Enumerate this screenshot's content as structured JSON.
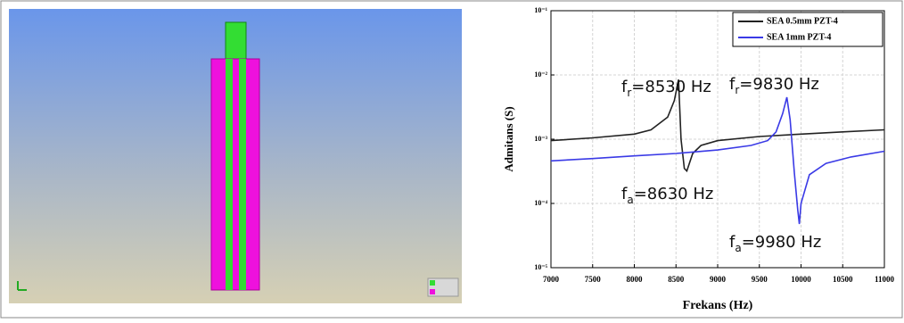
{
  "chart_data": {
    "type": "line",
    "log_y": true,
    "grid": true,
    "legend": "upper right",
    "xlabel": "Frekans (Hz)",
    "ylabel": "Admitans (S)",
    "xlim": [
      7000,
      11000
    ],
    "xticks": [
      7000,
      7500,
      8000,
      8500,
      9000,
      9500,
      10000,
      10500,
      11000
    ],
    "ylim": [
      1e-05,
      0.1
    ],
    "yticks": [
      {
        "value": 1e-05,
        "label": "10⁻⁵"
      },
      {
        "value": 0.0001,
        "label": "10⁻⁴"
      },
      {
        "value": 0.001,
        "label": "10⁻³"
      },
      {
        "value": 0.01,
        "label": "10⁻²"
      },
      {
        "value": 0.1,
        "label": "10⁻¹"
      }
    ],
    "series": [
      {
        "name": "SEA 0.5mm PZT-4",
        "color": "#222222",
        "x": [
          7000,
          7500,
          8000,
          8200,
          8400,
          8480,
          8530,
          8560,
          8600,
          8630,
          8700,
          8800,
          9000,
          9500,
          10000,
          10500,
          11000
        ],
        "values": [
          0.00095,
          0.00105,
          0.0012,
          0.0014,
          0.0022,
          0.004,
          0.0085,
          0.001,
          0.00035,
          0.00032,
          0.0006,
          0.0008,
          0.00095,
          0.0011,
          0.0012,
          0.0013,
          0.0014
        ]
      },
      {
        "name": "SEA 1mm PZT-4",
        "color": "#3a3ae6",
        "x": [
          7000,
          7500,
          8000,
          8500,
          9000,
          9400,
          9600,
          9700,
          9780,
          9830,
          9870,
          9920,
          9960,
          9980,
          10000,
          10100,
          10300,
          10600,
          11000
        ],
        "values": [
          0.00046,
          0.0005,
          0.00055,
          0.0006,
          0.00068,
          0.0008,
          0.00095,
          0.0013,
          0.0025,
          0.0045,
          0.002,
          0.0003,
          8e-05,
          4.8e-05,
          0.0001,
          0.00028,
          0.00042,
          0.00053,
          0.00065
        ]
      }
    ],
    "annotations": [
      {
        "main": "f",
        "sub": "r",
        "tail": "=8530 Hz"
      },
      {
        "main": "f",
        "sub": "a",
        "tail": "=8630 Hz"
      },
      {
        "main": "f",
        "sub": "r",
        "tail": "=9830 Hz"
      },
      {
        "main": "f",
        "sub": "a",
        "tail": "=9980 Hz"
      }
    ]
  }
}
